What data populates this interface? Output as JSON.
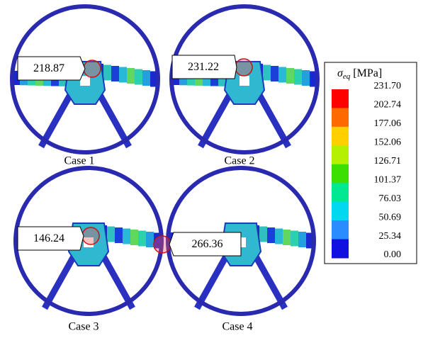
{
  "panels": [
    {
      "caption": "Case 1",
      "callout": "218.87"
    },
    {
      "caption": "Case 2",
      "callout": "231.22"
    },
    {
      "caption": "Case 3",
      "callout": "146.24"
    },
    {
      "caption": "Case 4",
      "callout": "266.36"
    }
  ],
  "legend": {
    "symbol": "σ",
    "subscript": "eq",
    "unit": "[MPa]",
    "labels": [
      "231.70",
      "202.74",
      "177.06",
      "152.06",
      "126.71",
      "101.37",
      "76.03",
      "50.69",
      "25.34",
      "0.00"
    ],
    "colors": [
      "#ff0000",
      "#ff6a00",
      "#ffd000",
      "#b4f000",
      "#3ce000",
      "#00e890",
      "#00d8f0",
      "#2a8cff",
      "#1010e0"
    ]
  }
}
